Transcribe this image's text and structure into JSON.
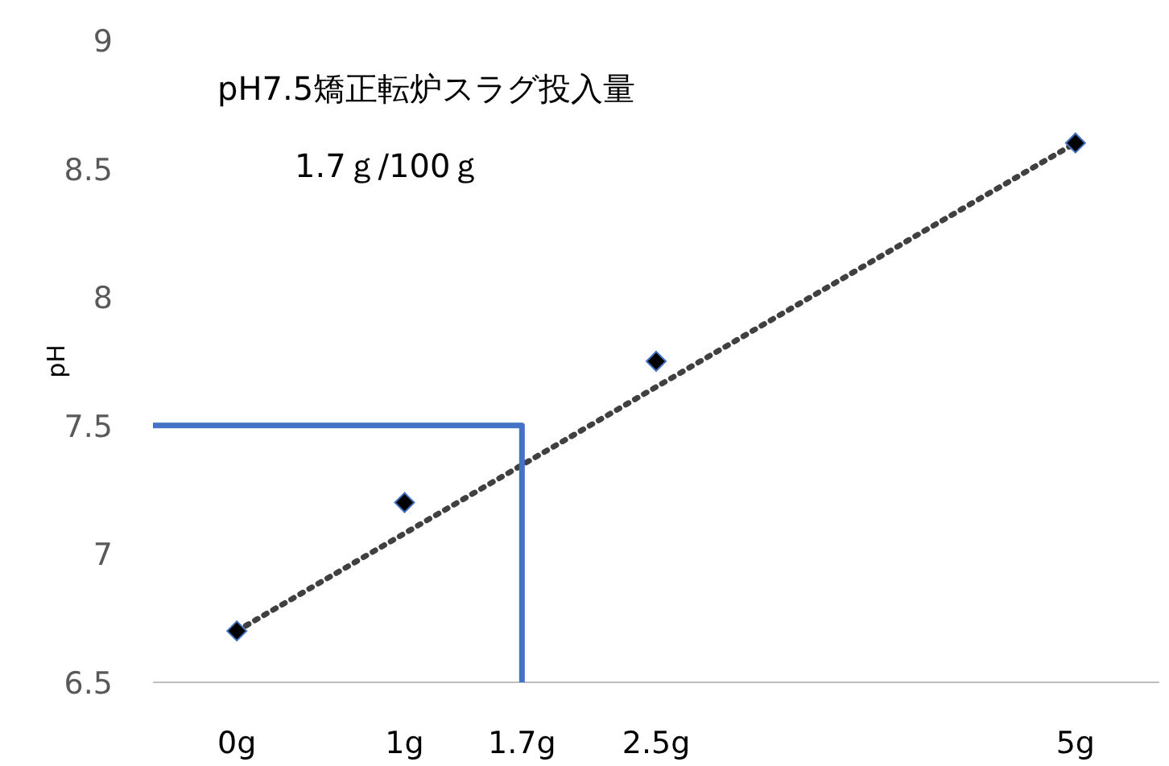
{
  "chart_data": {
    "type": "scatter",
    "ylabel": "pH",
    "annotations": [
      "pH7.5矯正転炉スラグ投入量",
      "1.7ｇ/100ｇ"
    ],
    "xlim": [
      -0.5,
      5.5
    ],
    "xticks": [
      {
        "value": 0,
        "label": "0g"
      },
      {
        "value": 1,
        "label": "1g"
      },
      {
        "value": 1.7,
        "label": "1.7g"
      },
      {
        "value": 2.5,
        "label": "2.5g"
      },
      {
        "value": 5,
        "label": "5g"
      }
    ],
    "ylim": [
      6.5,
      9
    ],
    "yticks": [
      6.5,
      7,
      7.5,
      8,
      8.5,
      9
    ],
    "grid": false,
    "series": [
      {
        "color": "#000000",
        "marker": "diamond",
        "x": [
          0,
          1,
          2.5,
          5
        ],
        "values": [
          6.7,
          7.2,
          7.75,
          8.6
        ]
      },
      {
        "type": "line",
        "color": "#404040",
        "line_style": "dotted",
        "x": [
          0,
          5
        ],
        "values": [
          6.7,
          8.6
        ]
      },
      {
        "type": "line",
        "color": "#4472c4",
        "line_style": "solid",
        "x": [
          -0.5,
          1.7,
          1.7
        ],
        "values": [
          7.5,
          7.5,
          6.5
        ]
      }
    ]
  }
}
